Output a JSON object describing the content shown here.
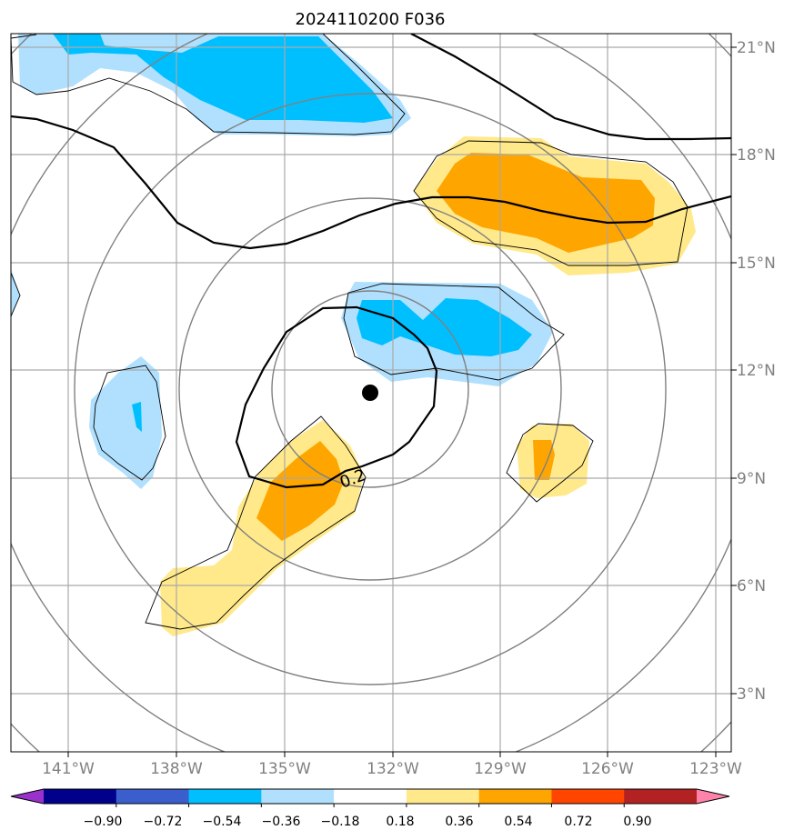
{
  "title": "2024110200 F036",
  "map": {
    "lon_ticks": [
      "141°W",
      "138°W",
      "135°W",
      "132°W",
      "129°W",
      "126°W",
      "123°W"
    ],
    "lat_ticks": [
      "21°N",
      "18°N",
      "15°N",
      "12°N",
      "9°N",
      "6°N",
      "3°N"
    ],
    "contour_label": "0.2",
    "center_marker": "storm-center"
  },
  "colorbar": {
    "labels": [
      "−0.90",
      "−0.72",
      "−0.54",
      "−0.36",
      "−0.18",
      "0.18",
      "0.36",
      "0.54",
      "0.72",
      "0.90"
    ],
    "colors": [
      "#9932cc",
      "#00008b",
      "#3a5fcd",
      "#00bfff",
      "#b0e0fe",
      "#ffffff",
      "#ffe98a",
      "#ffa500",
      "#ff4500",
      "#b22222",
      "#ff82ab"
    ]
  },
  "fill_colors": {
    "light_blue": "#b0e0fe",
    "blue": "#00bfff",
    "light_yellow": "#ffe98a",
    "orange": "#ffa500"
  }
}
